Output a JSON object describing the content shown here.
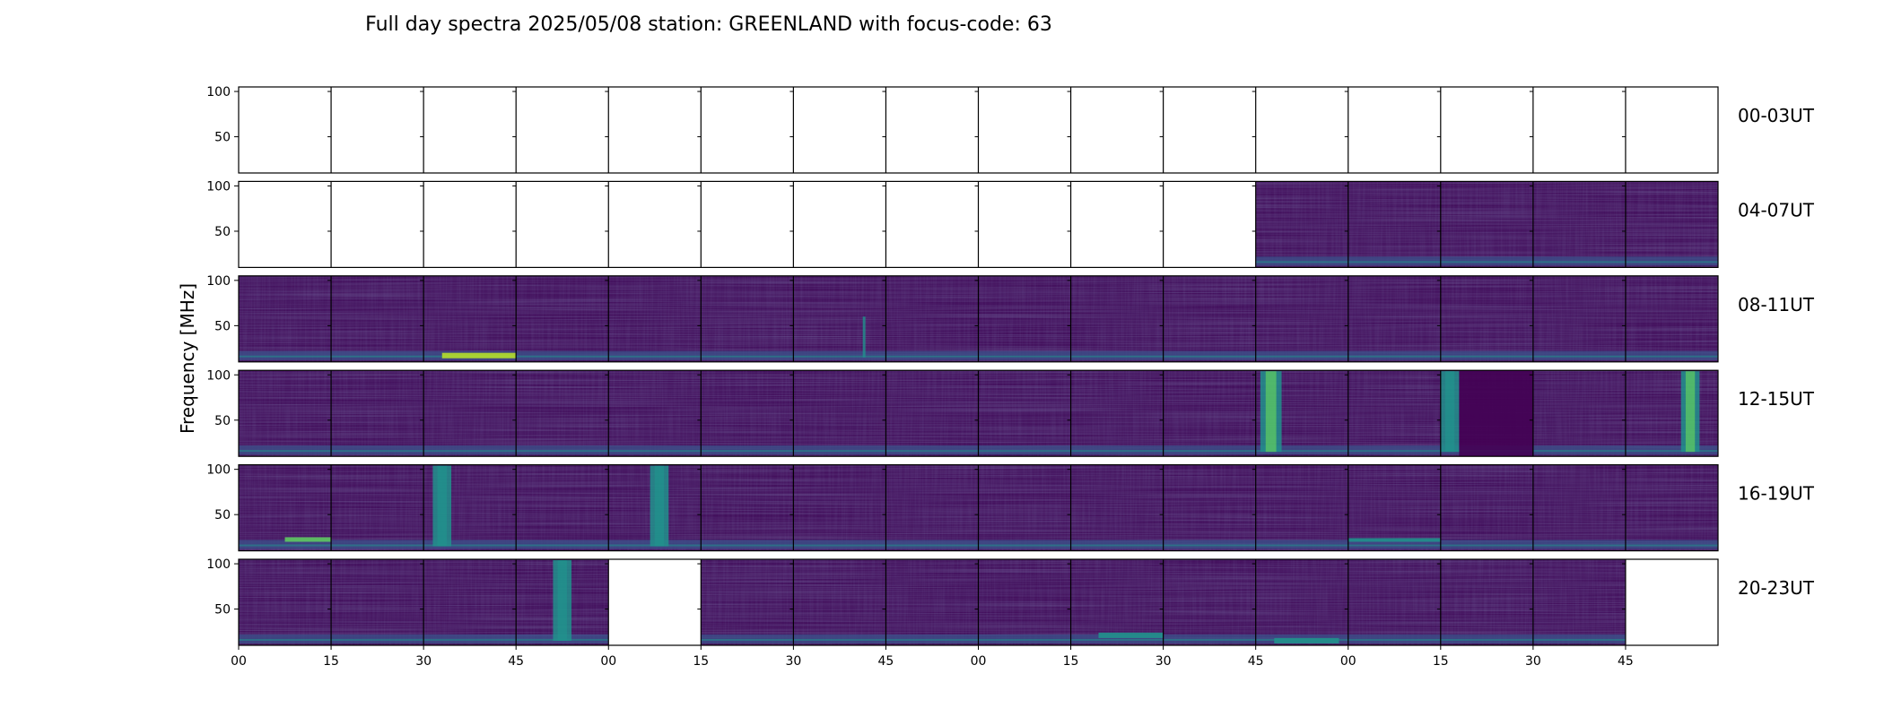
{
  "chart_data": {
    "type": "heatmap",
    "title": "Full day spectra 2025/05/08 station: GREENLAND with focus-code: 63",
    "ylabel": "Frequency [MHz]",
    "xlabel": "",
    "ylim": [
      10,
      105
    ],
    "y_ticks": [
      50,
      100
    ],
    "x_tick_labels": [
      "00",
      "15",
      "30",
      "45",
      "00",
      "15",
      "30",
      "45",
      "00",
      "15",
      "30",
      "45",
      "00",
      "15",
      "30",
      "45"
    ],
    "colormap": "viridis",
    "colors": {
      "base": "#44115e",
      "mid": "#3b528b",
      "teal": "#21918c",
      "bright": "#5ec962",
      "high": "#b5de2b",
      "dark": "#440154"
    },
    "rows": [
      {
        "label": "00-03UT",
        "panels": [
          false,
          false,
          false,
          false,
          false,
          false,
          false,
          false,
          false,
          false,
          false,
          false,
          false,
          false,
          false,
          false
        ],
        "features": []
      },
      {
        "label": "04-07UT",
        "panels": [
          false,
          false,
          false,
          false,
          false,
          false,
          false,
          false,
          false,
          false,
          false,
          true,
          true,
          true,
          true,
          true
        ],
        "features": []
      },
      {
        "label": "08-11UT",
        "panels": [
          true,
          true,
          true,
          true,
          true,
          true,
          true,
          true,
          true,
          true,
          true,
          true,
          true,
          true,
          true,
          true
        ],
        "features": [
          {
            "panel": 2,
            "kind": "hline",
            "f0": 14,
            "f1": 20,
            "x0": 0.2,
            "x1": 1.0,
            "level": "high"
          },
          {
            "panel": 6,
            "kind": "vline",
            "x": 0.75,
            "f0": 15,
            "f1": 60,
            "level": "teal"
          }
        ]
      },
      {
        "label": "12-15UT",
        "panels": [
          true,
          true,
          true,
          true,
          true,
          true,
          true,
          true,
          true,
          true,
          true,
          true,
          true,
          true,
          true,
          true
        ],
        "features": [
          {
            "panel": 11,
            "kind": "vband",
            "x0": 0.05,
            "x1": 0.28,
            "f0": 15,
            "f1": 104,
            "level": "bright"
          },
          {
            "panel": 13,
            "kind": "vband",
            "x0": 0.0,
            "x1": 0.2,
            "f0": 15,
            "f1": 104,
            "level": "teal"
          },
          {
            "panel": 13,
            "kind": "dark",
            "x0": 0.2,
            "x1": 1.0,
            "f0": 10,
            "f1": 105
          },
          {
            "panel": 15,
            "kind": "vband",
            "x0": 0.6,
            "x1": 0.8,
            "f0": 15,
            "f1": 104,
            "level": "bright"
          }
        ]
      },
      {
        "label": "16-19UT",
        "panels": [
          true,
          true,
          true,
          true,
          true,
          true,
          true,
          true,
          true,
          true,
          true,
          true,
          true,
          true,
          true,
          true
        ],
        "features": [
          {
            "panel": 2,
            "kind": "vband",
            "x0": 0.1,
            "x1": 0.3,
            "f0": 15,
            "f1": 104,
            "level": "teal"
          },
          {
            "panel": 4,
            "kind": "vband",
            "x0": 0.45,
            "x1": 0.65,
            "f0": 15,
            "f1": 104,
            "level": "teal"
          },
          {
            "panel": 0,
            "kind": "hline",
            "f0": 20,
            "f1": 25,
            "x0": 0.5,
            "x1": 1.0,
            "level": "bright"
          },
          {
            "panel": 12,
            "kind": "hline",
            "f0": 20,
            "f1": 24,
            "x0": 0.0,
            "x1": 1.0,
            "level": "teal"
          }
        ]
      },
      {
        "label": "20-23UT",
        "panels": [
          true,
          true,
          true,
          true,
          false,
          true,
          true,
          true,
          true,
          true,
          true,
          true,
          true,
          true,
          true,
          false
        ],
        "features": [
          {
            "panel": 3,
            "kind": "vband",
            "x0": 0.4,
            "x1": 0.6,
            "f0": 15,
            "f1": 104,
            "level": "teal"
          },
          {
            "panel": 9,
            "kind": "hline",
            "f0": 18,
            "f1": 24,
            "x0": 0.3,
            "x1": 1.0,
            "level": "teal"
          },
          {
            "panel": 11,
            "kind": "hline",
            "f0": 12,
            "f1": 18,
            "x0": 0.2,
            "x1": 0.9,
            "level": "teal"
          }
        ]
      }
    ]
  }
}
